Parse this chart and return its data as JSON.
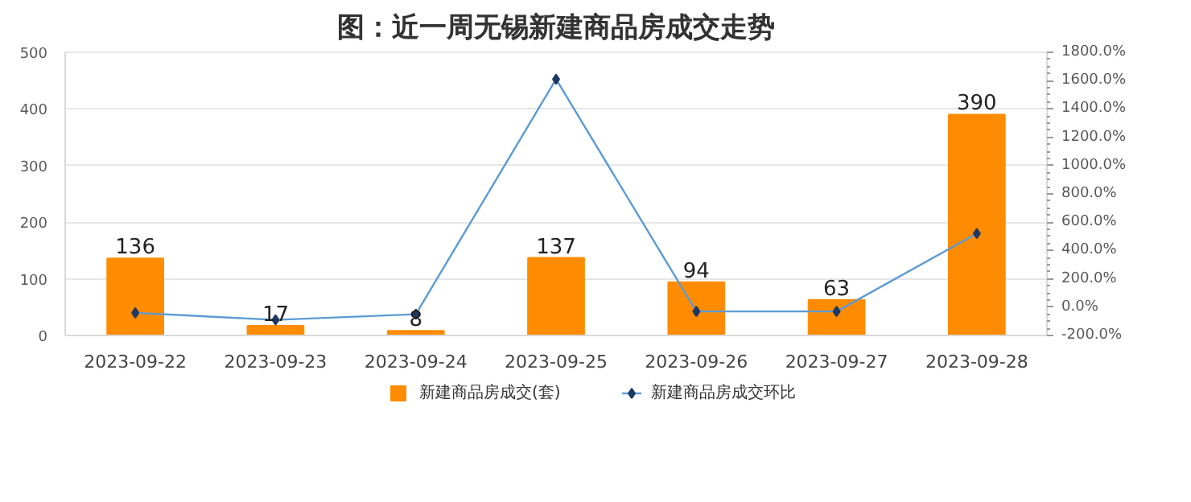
{
  "chart_data": {
    "type": "bar",
    "title": "图：近一周无锡新建商品房成交走势",
    "categories": [
      "2023-09-22",
      "2023-09-23",
      "2023-09-24",
      "2023-09-25",
      "2023-09-26",
      "2023-09-27",
      "2023-09-28"
    ],
    "series": [
      {
        "name": "新建商品房成交(套)",
        "color": "#ff8c00",
        "values": [
          136,
          17,
          8,
          137,
          94,
          63,
          390
        ],
        "value_labels": [
          "136",
          "17",
          "8",
          "137",
          "94",
          "63",
          "390"
        ]
      },
      {
        "name": "新建商品房成交环比",
        "type": "line",
        "axis": "y2",
        "color": "#5b9bd5",
        "marker": "diamond",
        "values": [
          -40,
          -90,
          -50,
          1610,
          -30,
          -30,
          520
        ]
      }
    ],
    "ylim": [
      0,
      500
    ],
    "yticks": [
      0,
      100,
      200,
      300,
      400,
      500
    ],
    "y2lim": [
      -200,
      1800
    ],
    "y2ticks": [
      {
        "value": -200,
        "label": "-200.0%"
      },
      {
        "value": 0,
        "label": "0.0%"
      },
      {
        "value": 200,
        "label": "200.0%"
      },
      {
        "value": 400,
        "label": "400.0%"
      },
      {
        "value": 600,
        "label": "600.0%"
      },
      {
        "value": 800,
        "label": "800.0%"
      },
      {
        "value": 1000,
        "label": "1000.0%"
      },
      {
        "value": 1200,
        "label": "1200.0%"
      },
      {
        "value": 1400,
        "label": "1400.0%"
      },
      {
        "value": 1600,
        "label": "1600.0%"
      },
      {
        "value": 1800,
        "label": "1800.0%"
      }
    ],
    "grid": "y",
    "legend": "bottom"
  }
}
